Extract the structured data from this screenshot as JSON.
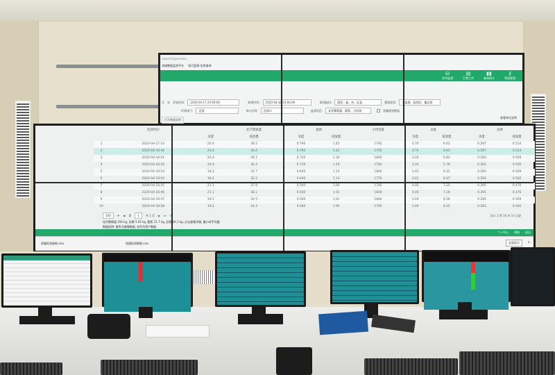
{
  "browser": {
    "tab1": "流域数据监测平台",
    "tab2": "排污监测-信息查询",
    "url": "aaspx/stypecode="
  },
  "nav": [
    {
      "label": "实时监测",
      "icon": "database-icon"
    },
    {
      "label": "日常工作",
      "icon": "briefcase-icon"
    },
    {
      "label": "查询统计",
      "icon": "chart-icon"
    },
    {
      "label": "系统管理",
      "icon": "key-icon"
    }
  ],
  "filters": {
    "period_month": "月",
    "period_year": "年",
    "start_label": "开始时间:",
    "start_value": "2020-04-17 23:00:00",
    "end_label": "结束时间:",
    "end_value": "2020-04-18 23:00:00",
    "level_label": "联网级别:",
    "level_value": "国家、省、市、区县",
    "mgmt_label": "管理类别:",
    "mgmt_value": "污染源、高风险、重点排",
    "env_label": "环境排污:",
    "env_value": "全部",
    "port_label": "排口名称:",
    "port_value": "总排口",
    "item_label": "监测项目:",
    "item_value": "化学需氧量、氨氮、小时流",
    "hide_label": "隐藏超限数据",
    "unit_link": "查看单位说明",
    "open_btn": "打开数据说明"
  },
  "table": {
    "headers": {
      "time": "监测时间",
      "conc": "浓度",
      "cod": "化学需氧量",
      "nh3": "氨氮",
      "flow": "小时流量",
      "tn": "总氮",
      "tp": "总磷",
      "emit": "排放量"
    },
    "rows": [
      [
        "1",
        "2020-04-17 23",
        "20.4",
        "36.5",
        "0.790",
        "1.42",
        "1792",
        "3.70",
        "6.62",
        "0.287",
        "0.514"
      ],
      [
        "2",
        "2020-04-18 00",
        "20.4",
        "36.5",
        "0.790",
        "1.42",
        "1792",
        "3.70",
        "6.62",
        "0.287",
        "0.514"
      ],
      [
        "3",
        "2020-04-18 01",
        "20.4",
        "36.7",
        "0.720",
        "1.30",
        "1800",
        "3.24",
        "5.83",
        "0.283",
        "0.509"
      ],
      [
        "4",
        "2020-04-18 02",
        "20.4",
        "36.4",
        "0.720",
        "1.29",
        "1784",
        "3.24",
        "5.78",
        "0.283",
        "0.505"
      ],
      [
        "5",
        "2020-04-18 03",
        "18.2",
        "32.7",
        "0.640",
        "1.15",
        "1800",
        "3.42",
        "6.15",
        "0.283",
        "0.509"
      ],
      [
        "6",
        "2020-04-18 04",
        "18.2",
        "32.2",
        "0.640",
        "1.14",
        "1776",
        "3.42",
        "6.07",
        "0.283",
        "0.502"
      ],
      [
        "7",
        "2020-04-18 05",
        "21.1",
        "37.9",
        "0.560",
        "1.00",
        "1792",
        "4.05",
        "7.25",
        "0.265",
        "0.476"
      ],
      [
        "8",
        "2020-04-18 06",
        "21.1",
        "38.1",
        "0.560",
        "1.01",
        "1800",
        "4.05",
        "7.28",
        "0.265",
        "0.476"
      ],
      [
        "9",
        "2020-04-18 07",
        "19.2",
        "34.5",
        "0.560",
        "1.01",
        "1800",
        "3.49",
        "6.28",
        "0.283",
        "0.509"
      ],
      [
        "10",
        "2020-04-18 08",
        "19.2",
        "34.3",
        "0.560",
        "1.00",
        "1792",
        "3.49",
        "6.25",
        "0.283",
        "0.506"
      ]
    ]
  },
  "pager": {
    "size": "100",
    "page_prefix": "第",
    "page": "1",
    "page_suffix": "共 1 页",
    "summary": "显示 1 到 10,共 10 记录"
  },
  "notes": {
    "totals": "化学需氧量 356 kg, 总磷 5.02 kg, 氨氮 11.7 kg, 总氮 64.1 kg, 点击查看详细, 最小时平均值",
    "legend": "数据说明: 紫色为故障数据, 灰色为停产数据"
  },
  "footer": {
    "user": "个人中心",
    "help": "帮助",
    "logout": "退出",
    "show_all": "全部显示"
  },
  "downloads": [
    {
      "name": "质量检测限制.xlsx"
    },
    {
      "name": "质量检测限制.xlsx"
    }
  ],
  "colors": {
    "brand": "#22a86a",
    "selected_row": "#cdeee7",
    "hmi_teal": "#1d8f95"
  }
}
